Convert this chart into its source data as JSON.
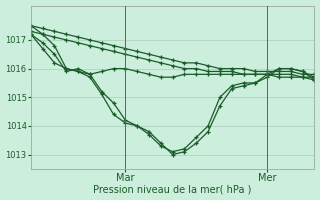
{
  "xlabel": "Pression niveau de la mer( hPa )",
  "background_color": "#cceedd",
  "grid_color": "#aaccbb",
  "line_color": "#1a5c28",
  "vline_color": "#556677",
  "ylim": [
    1012.5,
    1018.2
  ],
  "xlim": [
    0,
    24
  ],
  "yticks": [
    1013,
    1014,
    1015,
    1016,
    1017
  ],
  "day_labels": [
    "Mar",
    "Mer"
  ],
  "day_positions": [
    8,
    20
  ],
  "series": [
    {
      "x": [
        0,
        1,
        2,
        3,
        4,
        5,
        6,
        7,
        8,
        9,
        10,
        11,
        12,
        13,
        14,
        15,
        16,
        17,
        18,
        19,
        20,
        21,
        22,
        23,
        24
      ],
      "y": [
        1017.5,
        1017.4,
        1017.3,
        1017.2,
        1017.1,
        1017.0,
        1016.9,
        1016.8,
        1016.7,
        1016.6,
        1016.5,
        1016.4,
        1016.3,
        1016.2,
        1016.2,
        1016.1,
        1016.0,
        1016.0,
        1016.0,
        1015.9,
        1015.9,
        1015.9,
        1015.9,
        1015.8,
        1015.8
      ]
    },
    {
      "x": [
        0,
        1,
        2,
        3,
        4,
        5,
        6,
        7,
        8,
        9,
        10,
        11,
        12,
        13,
        14,
        15,
        16,
        17,
        18,
        19,
        20,
        21,
        22,
        23,
        24
      ],
      "y": [
        1017.3,
        1017.2,
        1017.1,
        1017.0,
        1016.9,
        1016.8,
        1016.7,
        1016.6,
        1016.5,
        1016.4,
        1016.3,
        1016.2,
        1016.1,
        1016.0,
        1016.0,
        1015.9,
        1015.9,
        1015.9,
        1015.8,
        1015.8,
        1015.8,
        1015.8,
        1015.8,
        1015.7,
        1015.7
      ]
    },
    {
      "x": [
        0,
        1,
        2,
        3,
        4,
        5,
        6,
        7,
        8,
        9,
        10,
        11,
        12,
        13,
        14,
        15,
        16,
        17,
        18,
        19,
        20,
        21,
        22,
        23,
        24
      ],
      "y": [
        1017.2,
        1016.7,
        1016.2,
        1016.0,
        1015.9,
        1015.8,
        1015.9,
        1016.0,
        1016.0,
        1015.9,
        1015.8,
        1015.7,
        1015.7,
        1015.8,
        1015.8,
        1015.8,
        1015.8,
        1015.8,
        1015.8,
        1015.8,
        1015.8,
        1015.7,
        1015.7,
        1015.7,
        1015.6
      ]
    },
    {
      "x": [
        0,
        1,
        2,
        3,
        4,
        5,
        6,
        7,
        8,
        9,
        10,
        11,
        12,
        13,
        14,
        15,
        16,
        17,
        18,
        19,
        20,
        21,
        22,
        23,
        24
      ],
      "y": [
        1017.5,
        1017.2,
        1016.8,
        1016.0,
        1015.9,
        1015.7,
        1015.1,
        1014.4,
        1014.1,
        1014.0,
        1013.8,
        1013.4,
        1013.0,
        1013.1,
        1013.4,
        1013.8,
        1014.7,
        1015.3,
        1015.4,
        1015.5,
        1015.8,
        1016.0,
        1016.0,
        1015.9,
        1015.6
      ]
    },
    {
      "x": [
        0,
        1,
        2,
        3,
        4,
        5,
        6,
        7,
        8,
        9,
        10,
        11,
        12,
        13,
        14,
        15,
        16,
        17,
        18,
        19,
        20,
        21,
        22,
        23,
        24
      ],
      "y": [
        1017.2,
        1016.9,
        1016.5,
        1015.9,
        1016.0,
        1015.8,
        1015.2,
        1014.8,
        1014.2,
        1014.0,
        1013.7,
        1013.3,
        1013.1,
        1013.2,
        1013.6,
        1014.0,
        1015.0,
        1015.4,
        1015.5,
        1015.5,
        1015.7,
        1016.0,
        1016.0,
        1015.9,
        1015.7
      ]
    }
  ]
}
